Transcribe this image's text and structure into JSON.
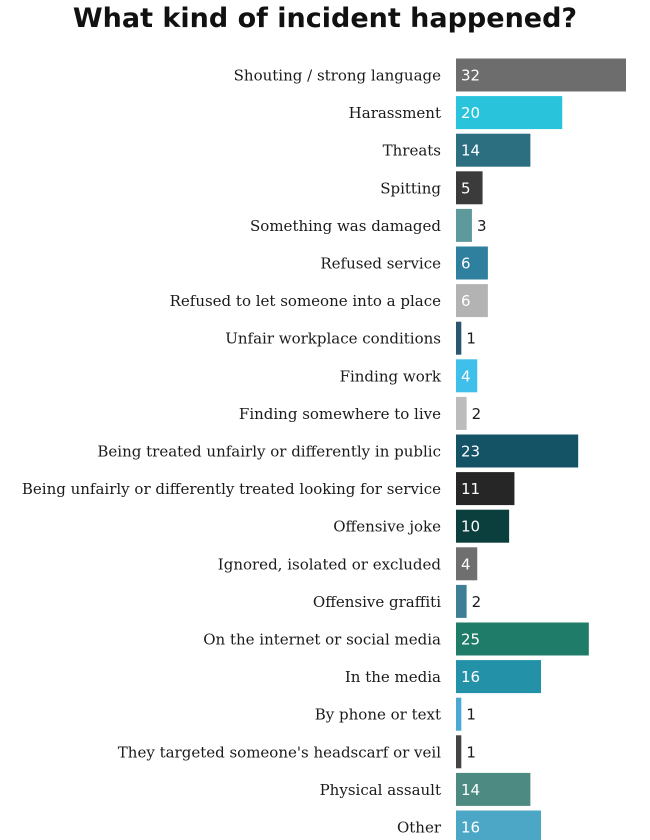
{
  "chart_data": {
    "type": "bar",
    "orientation": "horizontal",
    "title": "What kind of incident happened?",
    "xlabel": "",
    "ylabel": "",
    "xlim": [
      0,
      32
    ],
    "grid": false,
    "legend": "none",
    "categories": [
      "Shouting / strong language",
      "Harassment",
      "Threats",
      "Spitting",
      "Something was damaged",
      "Refused service",
      "Refused to let someone into a place",
      "Unfair workplace conditions",
      "Finding work",
      "Finding somewhere to live",
      "Being treated unfairly or differently in public",
      "Being unfairly or differently treated looking for service",
      "Offensive joke",
      "Ignored, isolated or excluded",
      "Offensive graffiti",
      "On the internet or social media",
      "In the media",
      "By phone or text",
      "They targeted someone's headscarf or veil",
      "Physical assault",
      "Other"
    ],
    "values": [
      32,
      20,
      14,
      5,
      3,
      6,
      6,
      1,
      4,
      2,
      23,
      11,
      10,
      4,
      2,
      25,
      16,
      1,
      1,
      14,
      16
    ],
    "colors": [
      "#6d6d6d",
      "#29c3dc",
      "#2b6f80",
      "#3b3b3b",
      "#5e9a9c",
      "#2f7f9e",
      "#b3b3b3",
      "#2b5670",
      "#3ec0ea",
      "#bcbcbc",
      "#145366",
      "#262626",
      "#0b3f3d",
      "#6f6f6f",
      "#3f7f96",
      "#1f7c68",
      "#2391a8",
      "#4aa9d4",
      "#444444",
      "#4c8a82",
      "#4ca6c6"
    ]
  }
}
